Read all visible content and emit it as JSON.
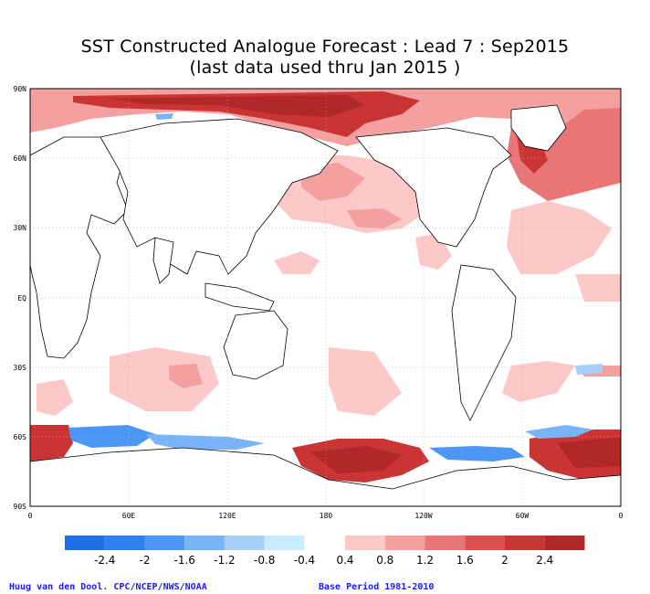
{
  "title_line1": "SST Constructed Analogue Forecast : Lead 7 : Sep2015",
  "title_line2": "(last data used thru Jan 2015 )",
  "footer_left": "Huug van den Dool. CPC/NCEP/NWS/NOAA",
  "footer_right": "Base Period 1981-2010",
  "lat_ticks": [
    "90N",
    "60N",
    "30N",
    "EQ",
    "30S",
    "60S",
    "90S"
  ],
  "lon_ticks": [
    "0",
    "60E",
    "120E",
    "180",
    "120W",
    "60W",
    "0"
  ],
  "colorbar": {
    "labels": [
      "-2.4",
      "-2",
      "-1.6",
      "-1.2",
      "-0.8",
      "-0.4",
      "0.4",
      "0.8",
      "1.2",
      "1.6",
      "2",
      "2.4"
    ],
    "negative_colors": [
      "#1e6fe6",
      "#2f80ee",
      "#4c96f4",
      "#78b4f8",
      "#a6d0fa",
      "#c9ecff"
    ],
    "positive_colors": [
      "#fcc8c8",
      "#f4a0a0",
      "#e97676",
      "#dc5050",
      "#c93434",
      "#b02828"
    ]
  },
  "colors": {
    "land_outline": "#000000",
    "grid": "#b4b4b4"
  }
}
